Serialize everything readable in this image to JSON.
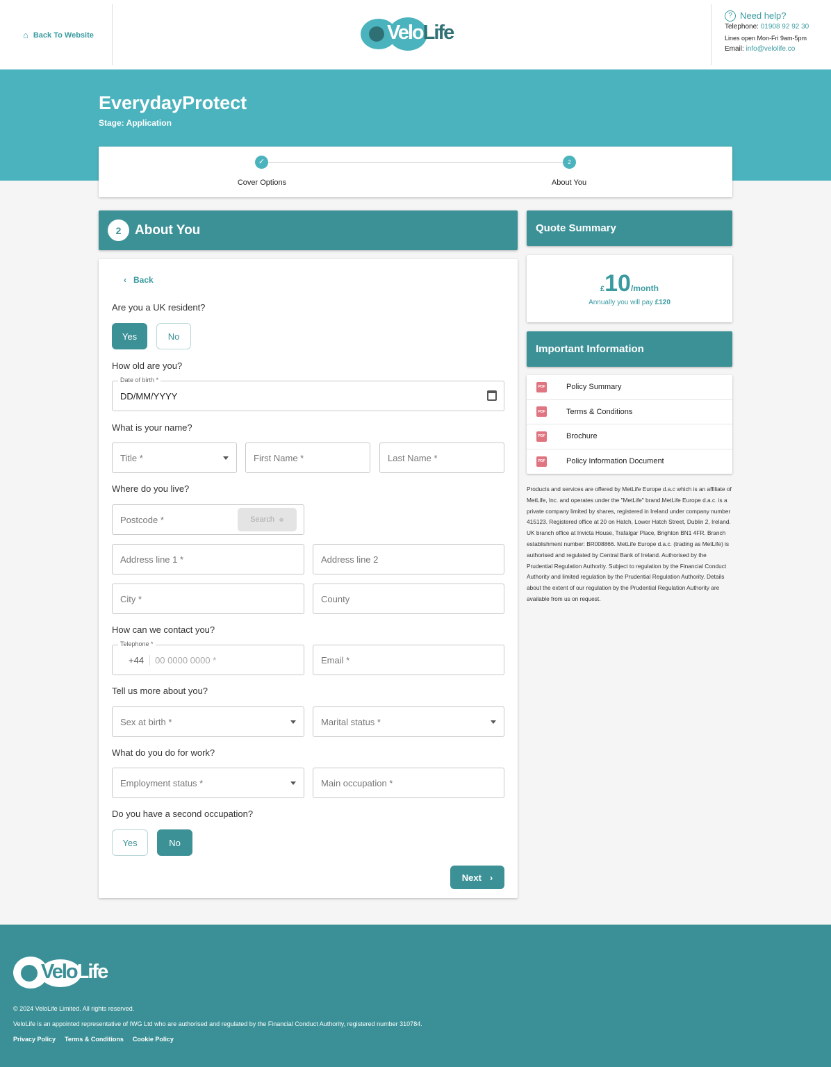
{
  "header": {
    "back_label": "Back To Website",
    "logo": "VeloLife",
    "help_title": "Need help?",
    "telephone_label": "Telephone:",
    "telephone": "01908 92 92 30",
    "hours": "Lines open Mon-Fri 9am-5pm",
    "email_label": "Email:",
    "email": "info@velolife.co"
  },
  "hero": {
    "title": "EverydayProtect",
    "stage": "Stage: Application"
  },
  "progress": {
    "steps": [
      {
        "label": "Cover Options",
        "state": "done"
      },
      {
        "label": "About You",
        "number": "2",
        "state": "current"
      }
    ]
  },
  "section": {
    "number": "2",
    "title": "About You"
  },
  "form": {
    "back": "Back",
    "uk_resident": {
      "question": "Are you a UK resident?",
      "yes": "Yes",
      "no": "No",
      "selected": "Yes"
    },
    "age": {
      "question": "How old are you?",
      "dob_label": "Date of birth *",
      "dob_value": "DD/MM/YYYY"
    },
    "name": {
      "question": "What is your name?",
      "title": "Title *",
      "first": "First Name *",
      "last": "Last Name *"
    },
    "address": {
      "question": "Where do you live?",
      "postcode": "Postcode *",
      "search": "Search",
      "line1": "Address line 1 *",
      "line2": "Address line 2",
      "city": "City *",
      "county": "County"
    },
    "contact": {
      "question": "How can we contact you?",
      "tel_label": "Telephone *",
      "prefix": "+44",
      "tel_placeholder": "00 0000 0000 *",
      "email": "Email *"
    },
    "more": {
      "question": "Tell us more about you?",
      "sex": "Sex at birth *",
      "marital": "Marital status *"
    },
    "work": {
      "question": "What do you do for work?",
      "employment": "Employment status *",
      "occupation": "Main occupation *"
    },
    "second": {
      "question": "Do you have a second occupation?",
      "yes": "Yes",
      "no": "No",
      "selected": "No"
    },
    "next": "Next"
  },
  "quote": {
    "title": "Quote Summary",
    "currency": "£",
    "amount": "10",
    "period": "/month",
    "annual_text": "Annually you will pay",
    "annual_amount": "£120"
  },
  "info": {
    "title": "Important Information",
    "docs": [
      "Policy Summary",
      "Terms & Conditions",
      "Brochure",
      "Policy Information Document"
    ],
    "disclaimer": "Products and services are offered by MetLife Europe d.a.c which is an affiliate of MetLife, Inc. and operates under the \"MetLife\" brand.MetLife Europe d.a.c. is a private company limited by shares, registered in Ireland under company number 415123. Registered office at 20 on Hatch, Lower Hatch Street, Dublin 2, Ireland. UK branch office at Invicta House, Trafalgar Place, Brighton BN1 4FR. Branch establishment number: BR008866. MetLife Europe d.a.c. (trading as MetLife) is authorised and regulated by Central Bank of Ireland. Authorised by the Prudential Regulation Authority. Subject to regulation by the Financial Conduct Authority and limited regulation by the Prudential Regulation Authority. Details about the extent of our regulation by the Prudential Regulation Authority are available from us on request."
  },
  "footer": {
    "logo": "VeloLife",
    "copyright": "© 2024 VeloLife Limited. All rights reserved.",
    "regulatory": "VeloLife is an appointed representative of IWG Ltd who are authorised and regulated by the Financial Conduct Authority, registered number 310784.",
    "links": [
      "Privacy Policy",
      "Terms & Conditions",
      "Cookie Policy"
    ]
  },
  "colors": {
    "brand": "#3c9197",
    "band": "#4bb3bd",
    "accent_text": "#3a9aa0"
  }
}
